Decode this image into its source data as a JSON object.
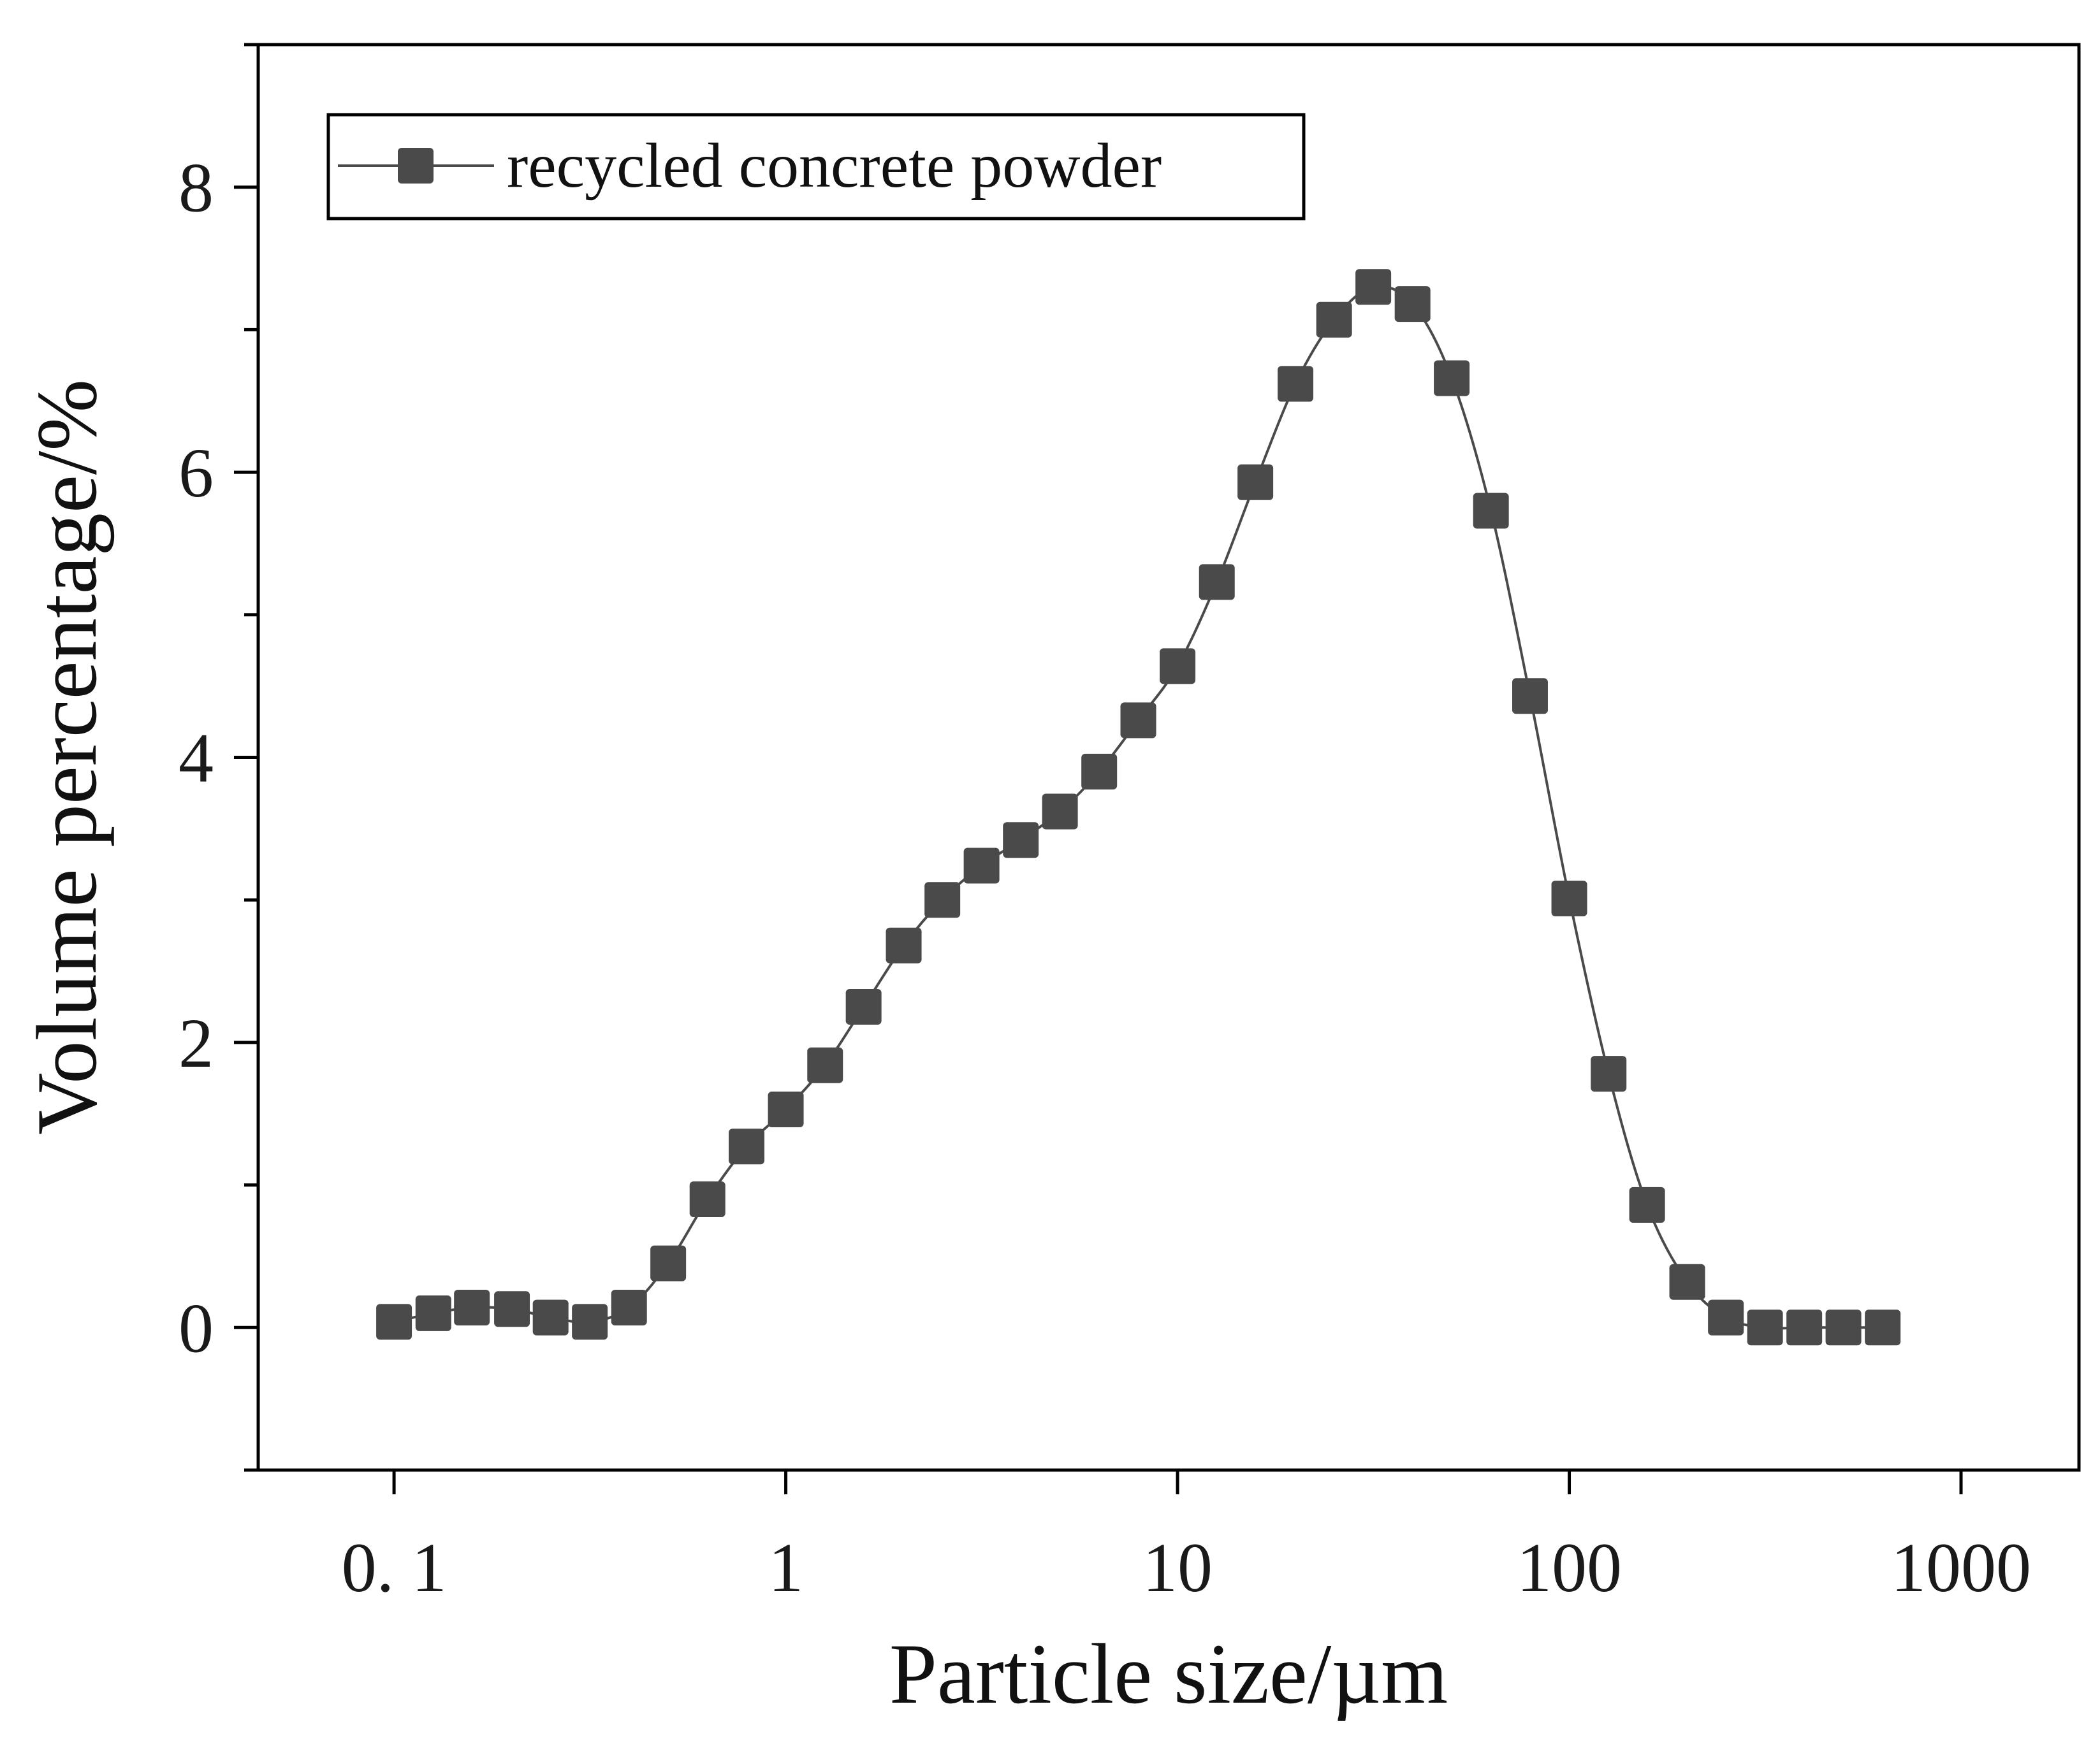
{
  "chart_data": {
    "type": "line",
    "title": "",
    "xlabel": "Particle size/µm",
    "ylabel": "Volume percentage/%",
    "xscale": "log",
    "xlim": [
      0.045,
      2000
    ],
    "ylim": [
      -1,
      9
    ],
    "x_ticks": [
      0.1,
      1,
      10,
      100,
      1000
    ],
    "x_tick_labels": [
      "0. 1",
      "1",
      "10",
      "100",
      "1000"
    ],
    "y_ticks": [
      0,
      2,
      4,
      6,
      8
    ],
    "y_tick_labels": [
      "0",
      "2",
      "4",
      "6",
      "8"
    ],
    "y_minor_ticks": [
      -1,
      1,
      3,
      5,
      7,
      9
    ],
    "grid": false,
    "legend_position": "top-left",
    "marker": "square",
    "colors": {
      "series": "#4a4a4a",
      "axis": "#000000"
    },
    "series": [
      {
        "name": "recycled concrete powder",
        "x": [
          0.1,
          0.126,
          0.158,
          0.2,
          0.251,
          0.316,
          0.398,
          0.501,
          0.631,
          0.794,
          1.0,
          1.26,
          1.58,
          2.0,
          2.51,
          3.16,
          3.98,
          5.01,
          6.31,
          7.94,
          10.0,
          12.6,
          15.8,
          20.0,
          25.1,
          31.6,
          39.8,
          50.1,
          63.1,
          79.4,
          100,
          126,
          158,
          200,
          251,
          316,
          398,
          501,
          631
        ],
        "y": [
          0.04,
          0.1,
          0.14,
          0.13,
          0.07,
          0.04,
          0.14,
          0.45,
          0.9,
          1.27,
          1.53,
          1.84,
          2.25,
          2.68,
          3.0,
          3.24,
          3.42,
          3.62,
          3.9,
          4.26,
          4.64,
          5.23,
          5.93,
          6.62,
          7.07,
          7.3,
          7.18,
          6.66,
          5.73,
          4.43,
          3.01,
          1.78,
          0.86,
          0.32,
          0.07,
          0.0,
          0.0,
          0.0,
          0.0
        ]
      }
    ]
  }
}
